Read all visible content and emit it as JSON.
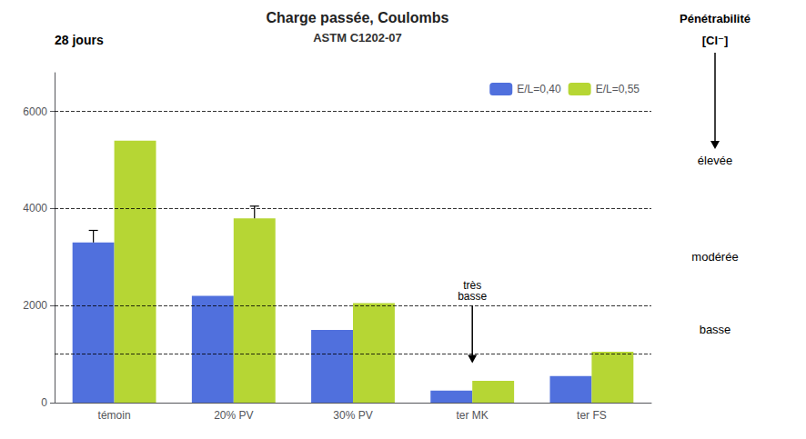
{
  "chart_data": {
    "type": "bar",
    "title": "Charge passée, Coulombs",
    "subtitle": "ASTM C1202-07",
    "annotations": [
      "28 jours",
      "Pénétrabilité",
      "[Cl⁻]",
      "élevée",
      "modérée",
      "basse",
      "très\nbasse"
    ],
    "categories": [
      "témoin",
      "20% PV",
      "30% PV",
      "ter MK",
      "ter FS"
    ],
    "series": [
      {
        "name": "E/L=0,40",
        "values": [
          3300,
          2200,
          1500,
          250,
          550
        ],
        "errors": [
          250,
          0,
          0,
          0,
          0
        ]
      },
      {
        "name": "E/L=0,55",
        "values": [
          5400,
          3800,
          2050,
          450,
          1050
        ],
        "errors": [
          0,
          250,
          0,
          0,
          0
        ]
      }
    ],
    "reference_lines": [
      1000,
      2000,
      4000,
      6000
    ],
    "ylim": [
      0,
      6800
    ],
    "yticks": [
      0,
      2000,
      4000,
      6000
    ],
    "grid": false,
    "legend": "upper right"
  }
}
